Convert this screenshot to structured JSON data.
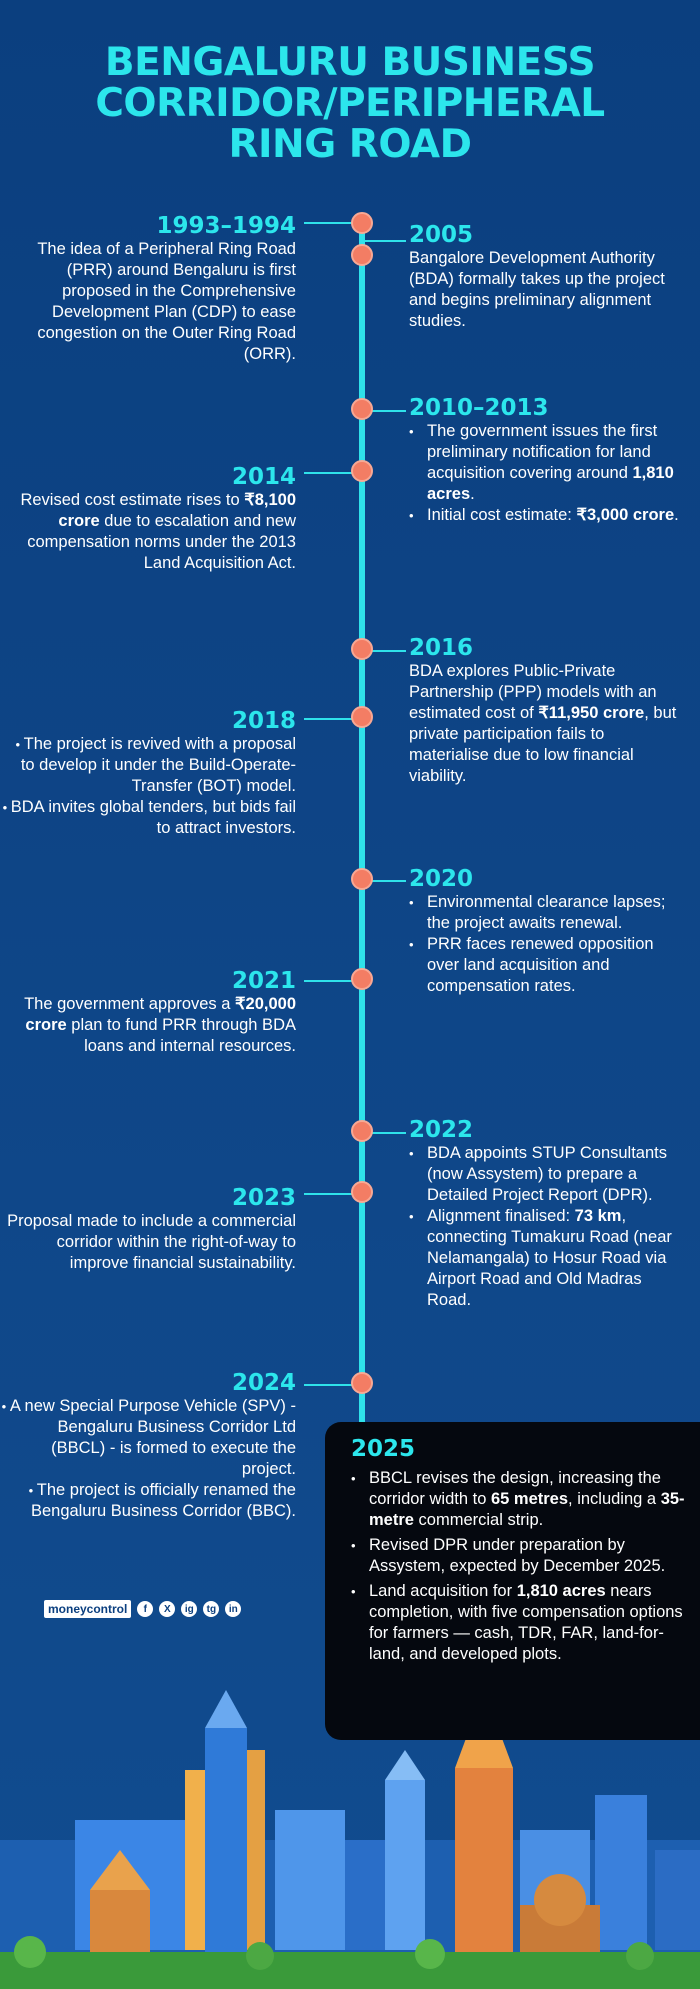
{
  "title": [
    "BENGALURU BUSINESS",
    "CORRIDOR/PERIPHERAL",
    "RING ROAD"
  ],
  "entries": {
    "e1993": {
      "year": "1993–1994",
      "text": "The idea of a Peripheral Ring Road (PRR) around Bengaluru is first proposed in the Comprehensive Development Plan (CDP) to ease congestion on the Outer Ring Road (ORR)."
    },
    "e2005": {
      "year": "2005",
      "text": "Bangalore Development Authority (BDA) formally takes up the project and begins preliminary alignment studies."
    },
    "e2010": {
      "year": "2010–2013",
      "b1_pre": "The government issues the first preliminary notification for land acquisition covering around ",
      "b1_bold": "1,810 acres",
      "b1_post": ".",
      "b2_pre": "Initial cost estimate: ",
      "b2_bold": "₹3,000 crore",
      "b2_post": "."
    },
    "e2014": {
      "year": "2014",
      "pre": "Revised cost estimate rises to ",
      "bold": "₹8,100 crore",
      "post": " due to escalation and new compensation norms under the 2013 Land Acquisition Act."
    },
    "e2016": {
      "year": "2016",
      "pre": "BDA explores Public-Private Partnership (PPP) models with an estimated cost of ",
      "bold": "₹11,950 crore",
      "post": ", but private participation fails to materialise due to low financial viability."
    },
    "e2018": {
      "year": "2018",
      "b1": "The project is revived with a proposal to develop it under the Build-Operate-Transfer (BOT) model.",
      "b2": "BDA invites global tenders, but bids fail to attract investors."
    },
    "e2020": {
      "year": "2020",
      "b1": "Environmental clearance lapses; the project awaits renewal.",
      "b2": "PRR faces renewed opposition over land acquisition and compensation rates."
    },
    "e2021": {
      "year": "2021",
      "pre": "The government approves a ",
      "bold": "₹20,000 crore",
      "post": " plan to fund PRR through BDA loans and internal resources."
    },
    "e2022": {
      "year": "2022",
      "b1": "BDA appoints STUP Consultants (now Assystem) to prepare a Detailed Project Report (DPR).",
      "b2_pre": "Alignment finalised: ",
      "b2_bold": "73 km",
      "b2_post": ", connecting Tumakuru Road (near Nelamangala) to Hosur Road via Airport Road and Old Madras Road."
    },
    "e2023": {
      "year": "2023",
      "text": "Proposal made to include a commercial corridor within the right-of-way to improve financial sustainability."
    },
    "e2024": {
      "year": "2024",
      "b1": "A new Special Purpose Vehicle (SPV) - Bengaluru Business Corridor Ltd (BBCL) - is formed to execute the project.",
      "b2": "The project is officially renamed the Bengaluru Business Corridor (BBC)."
    },
    "e2025": {
      "year": "2025",
      "b1_pre": "BBCL revises the design, increasing the corridor width to ",
      "b1_bold": "65 metres",
      "b1_mid": ", including a ",
      "b1_bold2": "35-metre",
      "b1_post": " commercial strip.",
      "b2": "Revised DPR under preparation by Assystem, expected by December 2025.",
      "b3_pre": "Land acquisition for ",
      "b3_bold": "1,810 acres",
      "b3_post": " nears completion, with five compensation options for farmers — cash, TDR, FAR, land-for-land, and developed plots."
    }
  },
  "brand": {
    "logo": "moneycontrol",
    "social": [
      "f",
      "X",
      "ig",
      "tg",
      "in"
    ]
  },
  "colors": {
    "background": "#0d3f7c",
    "accent": "#2ce6ec",
    "dot": "#f37d64",
    "box": "#05080f"
  }
}
